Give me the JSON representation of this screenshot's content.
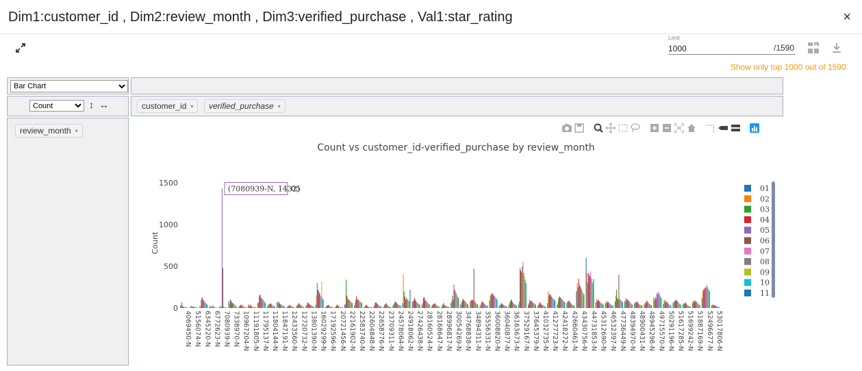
{
  "header": {
    "title": "Dim1:customer_id , Dim2:review_month , Dim3:verified_purchase , Val1:star_rating",
    "close_label": "×"
  },
  "toolbar": {
    "limit_label": "Limit",
    "limit_value": "1000",
    "limit_total": "/1590",
    "warning": "Show only top 1000 out of 1590.",
    "icons": [
      "expand-icon",
      "swap-axes-icon",
      "download-icon"
    ]
  },
  "pivot": {
    "renderer": "Bar Chart",
    "renderer_options": [
      "Bar Chart"
    ],
    "aggregator": "Count",
    "aggregator_options": [
      "Count"
    ],
    "sort_arrows": "↕ ↔",
    "col_fields": [
      "customer_id",
      "verified_purchase"
    ],
    "row_fields": [
      "review_month"
    ]
  },
  "modebar": {
    "icons": [
      "camera-icon",
      "save-icon",
      "zoom-icon",
      "pan-icon",
      "box-select-icon",
      "lasso-icon",
      "zoom-in-icon",
      "zoom-out-icon",
      "autoscale-icon",
      "reset-axes-icon",
      "spike-lines-icon",
      "hover-closest-icon",
      "hover-compare-icon",
      "plotly-logo-icon"
    ]
  },
  "colors": {
    "accent_warning": "#f39c12",
    "series": [
      "#1f77b4",
      "#ff7f0e",
      "#2ca02c",
      "#d62728",
      "#9467bd",
      "#8c564b",
      "#e377c2",
      "#7f7f7f",
      "#bcbd22",
      "#17becf",
      "#1f77b4"
    ]
  },
  "chart_data": {
    "type": "bar",
    "title": "Count vs customer_id-verified_purchase by review_month",
    "xlabel": "",
    "ylabel": "Count",
    "ylim": [
      0,
      1600
    ],
    "yticks": [
      0,
      500,
      1000,
      1500
    ],
    "grid": false,
    "legend": "right",
    "legend_entries": [
      "01",
      "02",
      "03",
      "04",
      "05",
      "06",
      "07",
      "08",
      "09",
      "10",
      "11"
    ],
    "hover": {
      "text": "(7080939-N, 1432)",
      "series": "05"
    },
    "categories": [
      "4069450-N",
      "5156074-N",
      "6345220-N",
      "6772623-N",
      "7080939-N",
      "7338970-N",
      "10967204-N",
      "11191805-N",
      "11795137-N",
      "11804144-N",
      "11847191-N",
      "12433560-N",
      "12720732-N",
      "13801390-N",
      "16029299-N",
      "17192596-N",
      "20721456-N",
      "22161902-N",
      "22583740-N",
      "22604848-N",
      "22658776-N",
      "23709311-N",
      "24578064-N",
      "24918062-N",
      "27426438-N",
      "28160524-N",
      "28168647-N",
      "28996817-N",
      "30054269-N",
      "34768838-N",
      "34894311-N",
      "35556331-N",
      "36008820-N",
      "36040877-N",
      "36163673-N",
      "37529167-N",
      "37645379-N",
      "41032735-N",
      "41277723-N",
      "42418272-N",
      "42660461-N",
      "43430756-N",
      "44731853-N",
      "45312690-N",
      "46532397-N",
      "47736449-N",
      "48394970-N",
      "48900431-N",
      "48945298-N",
      "49715570-N",
      "50291196-N",
      "51617285-N",
      "51699242-N",
      "51887169-N",
      "52496677-N",
      "53017806-N"
    ],
    "series": [
      {
        "name": "01",
        "values": [
          30,
          10,
          20,
          15,
          12,
          80,
          10,
          30,
          60,
          20,
          70,
          10,
          20,
          30,
          40,
          10,
          10,
          40,
          30,
          10,
          20,
          10,
          30,
          60,
          80,
          40,
          20,
          10,
          60,
          40,
          80,
          20,
          90,
          30,
          40,
          40,
          40,
          30,
          60,
          40,
          60,
          200,
          600,
          70,
          60,
          80,
          80,
          60,
          40,
          120,
          50,
          60,
          40,
          60,
          120,
          30
        ]
      },
      {
        "name": "02",
        "values": [
          40,
          30,
          20,
          30,
          10,
          50,
          30,
          50,
          70,
          40,
          60,
          20,
          30,
          40,
          150,
          20,
          20,
          50,
          60,
          20,
          30,
          30,
          50,
          400,
          80,
          60,
          40,
          30,
          80,
          60,
          100,
          40,
          160,
          40,
          60,
          80,
          60,
          40,
          200,
          70,
          80,
          300,
          420,
          110,
          80,
          150,
          120,
          60,
          60,
          90,
          100,
          80,
          60,
          80,
          200,
          40
        ]
      },
      {
        "name": "03",
        "values": [
          70,
          20,
          100,
          20,
          20,
          100,
          20,
          20,
          150,
          40,
          80,
          20,
          40,
          70,
          300,
          30,
          30,
          340,
          100,
          30,
          60,
          40,
          60,
          200,
          90,
          120,
          40,
          40,
          150,
          80,
          90,
          60,
          150,
          40,
          80,
          480,
          100,
          60,
          150,
          120,
          80,
          250,
          300,
          80,
          60,
          220,
          90,
          70,
          60,
          130,
          90,
          80,
          50,
          90,
          220,
          40
        ]
      },
      {
        "name": "04",
        "values": [
          20,
          10,
          130,
          10,
          15,
          90,
          40,
          40,
          160,
          50,
          60,
          30,
          60,
          60,
          220,
          30,
          40,
          150,
          140,
          40,
          70,
          50,
          80,
          140,
          120,
          130,
          50,
          60,
          100,
          110,
          100,
          80,
          180,
          60,
          100,
          450,
          80,
          70,
          170,
          140,
          90,
          350,
          420,
          100,
          80,
          120,
          110,
          80,
          80,
          110,
          70,
          90,
          60,
          70,
          230,
          35
        ]
      },
      {
        "name": "05",
        "values": [
          15,
          20,
          110,
          20,
          1432,
          70,
          30,
          30,
          130,
          60,
          50,
          40,
          50,
          50,
          200,
          40,
          30,
          120,
          110,
          30,
          60,
          60,
          70,
          100,
          100,
          100,
          60,
          40,
          280,
          100,
          90,
          70,
          170,
          50,
          90,
          430,
          90,
          50,
          160,
          130,
          70,
          280,
          400,
          90,
          70,
          100,
          100,
          70,
          90,
          180,
          80,
          100,
          70,
          90,
          250,
          30
        ]
      },
      {
        "name": "06",
        "values": [
          10,
          15,
          90,
          30,
          480,
          60,
          40,
          20,
          120,
          50,
          40,
          30,
          40,
          40,
          180,
          30,
          20,
          100,
          100,
          20,
          50,
          40,
          60,
          120,
          80,
          90,
          50,
          30,
          220,
          90,
          470,
          60,
          160,
          40,
          70,
          500,
          80,
          40,
          140,
          120,
          60,
          260,
          380,
          80,
          60,
          400,
          90,
          60,
          70,
          160,
          70,
          90,
          50,
          80,
          240,
          30
        ]
      },
      {
        "name": "07",
        "values": [
          10,
          10,
          80,
          10,
          20,
          60,
          20,
          20,
          110,
          40,
          40,
          20,
          30,
          40,
          160,
          20,
          20,
          100,
          90,
          20,
          40,
          30,
          50,
          110,
          70,
          80,
          40,
          30,
          200,
          80,
          80,
          50,
          150,
          40,
          60,
          560,
          70,
          40,
          130,
          110,
          50,
          240,
          440,
          70,
          50,
          110,
          80,
          50,
          60,
          200,
          60,
          80,
          40,
          70,
          280,
          25
        ]
      },
      {
        "name": "08",
        "values": [
          10,
          10,
          70,
          10,
          10,
          50,
          20,
          10,
          100,
          30,
          30,
          20,
          30,
          30,
          140,
          20,
          10,
          90,
          80,
          10,
          30,
          20,
          40,
          100,
          60,
          70,
          30,
          20,
          180,
          70,
          70,
          40,
          140,
          30,
          50,
          420,
          60,
          30,
          120,
          100,
          40,
          220,
          360,
          60,
          40,
          100,
          70,
          40,
          50,
          180,
          50,
          70,
          30,
          60,
          260,
          20
        ]
      },
      {
        "name": "09",
        "values": [
          10,
          10,
          60,
          10,
          10,
          40,
          20,
          10,
          90,
          30,
          30,
          20,
          20,
          30,
          320,
          20,
          10,
          80,
          80,
          10,
          30,
          20,
          40,
          90,
          60,
          60,
          30,
          20,
          160,
          60,
          60,
          40,
          130,
          30,
          40,
          380,
          60,
          30,
          110,
          90,
          40,
          200,
          320,
          60,
          40,
          90,
          60,
          40,
          40,
          160,
          40,
          60,
          30,
          50,
          240,
          20
        ]
      },
      {
        "name": "10",
        "values": [
          5,
          5,
          50,
          5,
          5,
          30,
          10,
          10,
          80,
          20,
          20,
          10,
          20,
          20,
          120,
          10,
          10,
          70,
          70,
          10,
          20,
          20,
          30,
          80,
          50,
          50,
          20,
          20,
          140,
          50,
          50,
          30,
          120,
          20,
          40,
          340,
          50,
          20,
          100,
          80,
          30,
          180,
          300,
          50,
          30,
          80,
          50,
          30,
          40,
          140,
          40,
          50,
          20,
          40,
          220,
          15
        ]
      },
      {
        "name": "11",
        "values": [
          5,
          5,
          40,
          5,
          5,
          20,
          10,
          10,
          60,
          20,
          20,
          10,
          10,
          20,
          100,
          10,
          10,
          60,
          60,
          10,
          20,
          10,
          30,
          220,
          40,
          40,
          20,
          10,
          120,
          40,
          40,
          30,
          100,
          20,
          30,
          300,
          40,
          20,
          90,
          70,
          30,
          160,
          350,
          40,
          30,
          70,
          40,
          30,
          30,
          120,
          30,
          40,
          20,
          30,
          200,
          10
        ]
      }
    ]
  }
}
